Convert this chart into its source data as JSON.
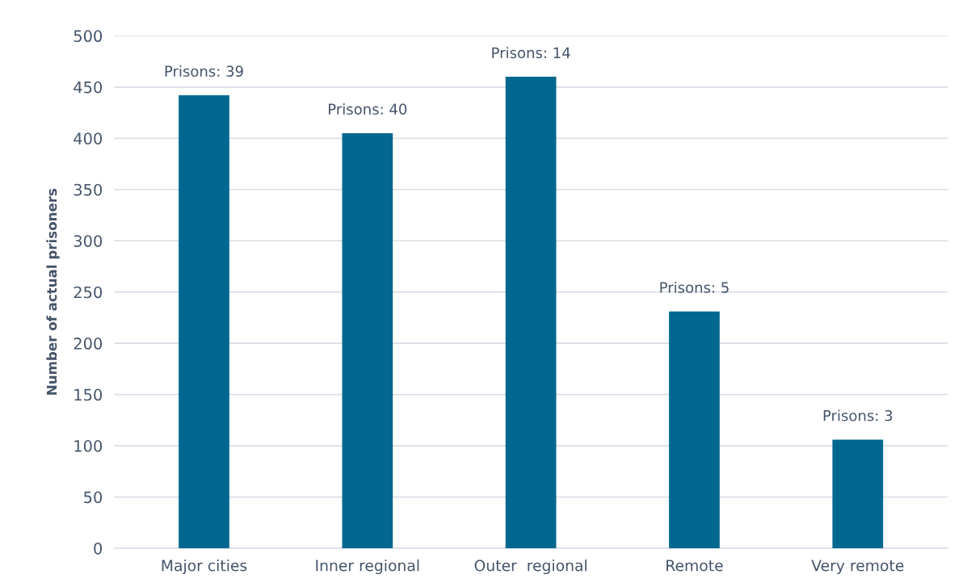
{
  "chart_data": {
    "type": "bar",
    "ylabel": "Number of actual prisoners",
    "categories": [
      "Major cities",
      "Inner regional",
      "Outer  regional",
      "Remote",
      "Very remote"
    ],
    "values": [
      442,
      405,
      460,
      231,
      106
    ],
    "annotations": [
      {
        "text": "Prisons: 39",
        "x": "Major cities",
        "y": 442
      },
      {
        "text": "Prisons: 40",
        "x": "Inner regional",
        "y": 405
      },
      {
        "text": "Prisons: 14",
        "x": "Outer  regional",
        "y": 460
      },
      {
        "text": "Prisons: 5",
        "x": "Remote",
        "y": 231
      },
      {
        "text": "Prisons: 3",
        "x": "Very remote",
        "y": 106
      }
    ],
    "color": "#006890",
    "ylim": [
      0,
      500
    ],
    "yticks": [
      0,
      50,
      100,
      150,
      200,
      250,
      300,
      350,
      400,
      450,
      500
    ],
    "grid": "y",
    "legend": false
  }
}
